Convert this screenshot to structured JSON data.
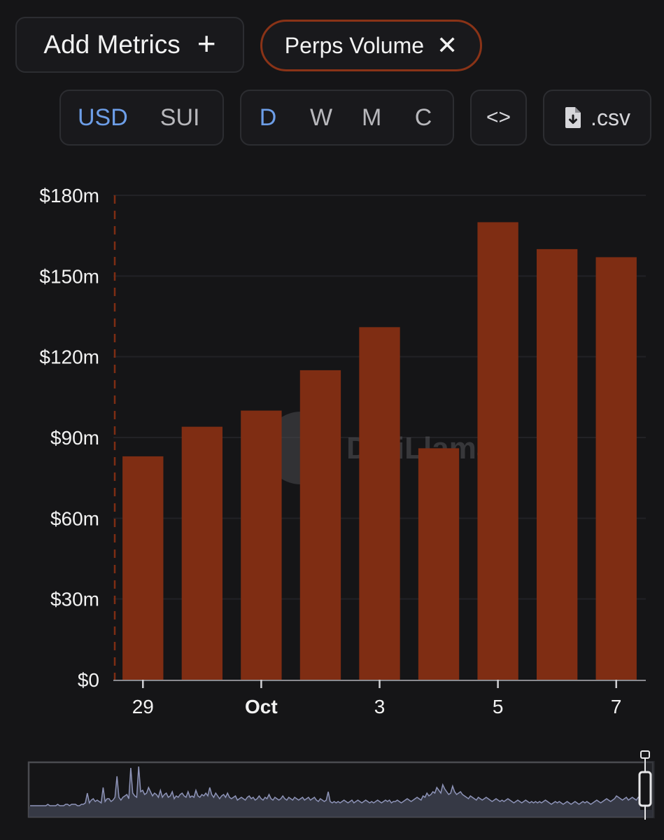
{
  "toolbar": {
    "add_metrics_label": "Add Metrics",
    "add_icon": "plus-icon",
    "active_metric_label": "Perps Volume",
    "remove_icon": "close-icon",
    "currency_options": [
      "USD",
      "SUI"
    ],
    "currency_selected": "USD",
    "period_options": [
      "D",
      "W",
      "M",
      "C"
    ],
    "period_selected": "D",
    "embed_icon": "code-brackets-icon",
    "embed_label": "<>",
    "csv_icon": "file-download-icon",
    "csv_label": ".csv"
  },
  "colors": {
    "background": "#151517",
    "bar": "#7f2d13",
    "accent": "#6d9ee8",
    "chip_border": "#8a3317",
    "brush_line": "#8e94b8"
  },
  "watermark": {
    "text": "DefiLlama"
  },
  "chart_data": {
    "type": "bar",
    "title": "",
    "xlabel": "",
    "ylabel": "",
    "categories": [
      "Sep 29",
      "Sep 30",
      "Oct 1",
      "Oct 2",
      "Oct 3",
      "Oct 4",
      "Oct 5",
      "Oct 6",
      "Oct 7"
    ],
    "values": [
      83,
      94,
      100,
      115,
      131,
      86,
      170,
      160,
      157
    ],
    "ylim": [
      0,
      180
    ],
    "y_ticks": [
      0,
      30,
      60,
      90,
      120,
      150,
      180
    ],
    "y_tick_labels": [
      "$0",
      "$30m",
      "$60m",
      "$90m",
      "$120m",
      "$150m",
      "$180m"
    ],
    "x_tick_labels": [
      {
        "index": 0,
        "label": "29",
        "bold": false
      },
      {
        "index": 2,
        "label": "Oct",
        "bold": true
      },
      {
        "index": 4,
        "label": "3",
        "bold": false
      },
      {
        "index": 6,
        "label": "5",
        "bold": false
      },
      {
        "index": 8,
        "label": "7",
        "bold": false
      }
    ],
    "grid": true,
    "legend": "none"
  },
  "brush": {
    "series": [
      3,
      3,
      3,
      3,
      3,
      3,
      3,
      3,
      3,
      4,
      3,
      3,
      3,
      3,
      4,
      3,
      3,
      3,
      4,
      4,
      3,
      4,
      4,
      4,
      3,
      3,
      4,
      4,
      5,
      12,
      5,
      7,
      8,
      6,
      7,
      6,
      5,
      16,
      6,
      8,
      8,
      6,
      7,
      9,
      24,
      9,
      7,
      9,
      10,
      11,
      8,
      30,
      12,
      10,
      9,
      31,
      13,
      14,
      11,
      12,
      16,
      13,
      10,
      12,
      11,
      9,
      14,
      9,
      11,
      12,
      9,
      10,
      13,
      8,
      10,
      9,
      11,
      12,
      10,
      9,
      13,
      9,
      10,
      9,
      14,
      10,
      9,
      11,
      10,
      12,
      10,
      16,
      11,
      9,
      12,
      10,
      8,
      10,
      11,
      9,
      12,
      9,
      8,
      9,
      10,
      7,
      8,
      9,
      8,
      7,
      9,
      10,
      8,
      9,
      7,
      8,
      10,
      8,
      7,
      9,
      8,
      11,
      8,
      7,
      9,
      8,
      7,
      8,
      10,
      8,
      7,
      9,
      8,
      7,
      9,
      8,
      7,
      8,
      9,
      7,
      8,
      9,
      7,
      8,
      9,
      7,
      6,
      8,
      7,
      6,
      7,
      13,
      6,
      5,
      6,
      5,
      6,
      5,
      6,
      7,
      6,
      5,
      6,
      7,
      5,
      6,
      7,
      6,
      5,
      6,
      7,
      6,
      5,
      6,
      5,
      6,
      7,
      6,
      5,
      6,
      7,
      6,
      7,
      5,
      6,
      6,
      7,
      6,
      5,
      6,
      7,
      8,
      7,
      6,
      7,
      8,
      9,
      8,
      7,
      10,
      9,
      12,
      10,
      11,
      13,
      12,
      16,
      14,
      12,
      18,
      15,
      13,
      11,
      12,
      17,
      13,
      11,
      12,
      13,
      11,
      10,
      9,
      8,
      10,
      9,
      8,
      7,
      9,
      8,
      7,
      8,
      9,
      8,
      7,
      6,
      7,
      8,
      7,
      6,
      7,
      6,
      7,
      8,
      7,
      6,
      5,
      6,
      7,
      6,
      5,
      6,
      7,
      6,
      5,
      6,
      5,
      6,
      5,
      6,
      5,
      6,
      7,
      6,
      5,
      4,
      5,
      6,
      5,
      6,
      5,
      4,
      5,
      6,
      5,
      4,
      5,
      6,
      5,
      4,
      5,
      6,
      5,
      6,
      5,
      4,
      5,
      6,
      7,
      6,
      5,
      6,
      7,
      8,
      7,
      6,
      7,
      8,
      10,
      9,
      8,
      7,
      8,
      9,
      7,
      8,
      9,
      8,
      7,
      9,
      10
    ]
  }
}
